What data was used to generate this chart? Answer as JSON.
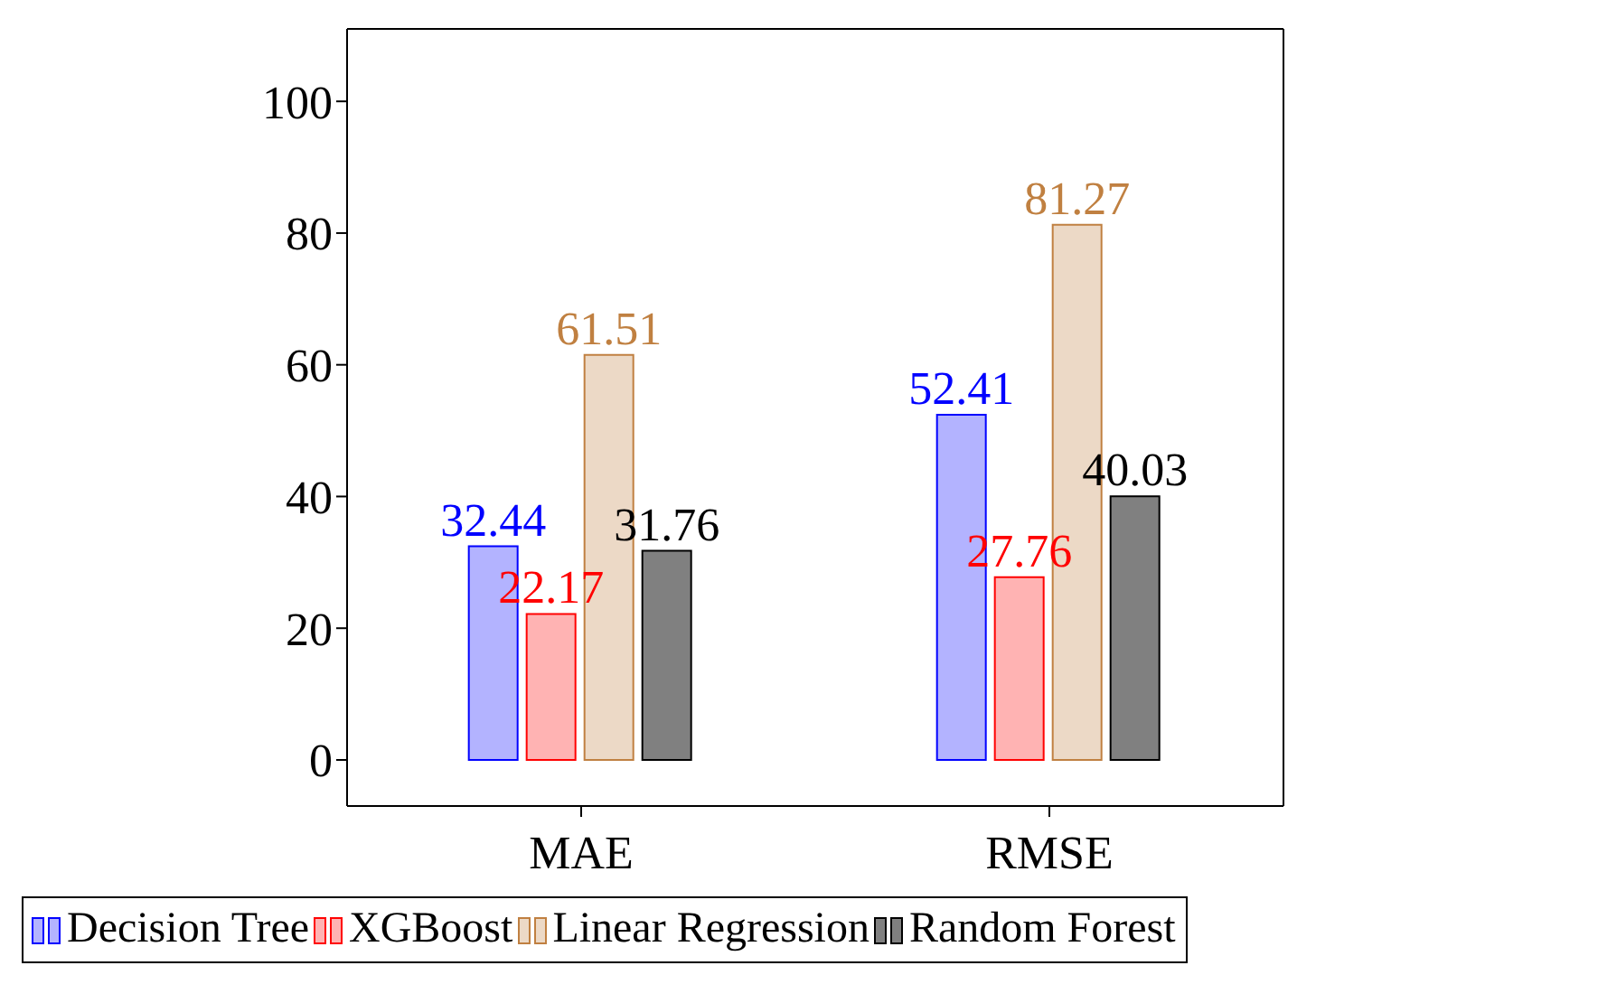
{
  "chart_data": {
    "type": "bar",
    "categories": [
      "MAE",
      "RMSE"
    ],
    "series": [
      {
        "name": "Decision Tree",
        "color": "#b3b3ff",
        "values": [
          32.44,
          52.41
        ]
      },
      {
        "name": "XGBoost",
        "color": "#ffb3b3",
        "values": [
          22.17,
          27.76
        ]
      },
      {
        "name": "Linear Regression",
        "color": "#ecd9c6",
        "values": [
          61.51,
          81.27
        ]
      },
      {
        "name": "Random Forest",
        "color": "#808080",
        "values": [
          31.76,
          40.03
        ]
      }
    ],
    "ylim": [
      -7,
      111
    ],
    "yticks": [
      0,
      20,
      40,
      60,
      80,
      100
    ],
    "legend": "bottom",
    "data_labels": true
  }
}
